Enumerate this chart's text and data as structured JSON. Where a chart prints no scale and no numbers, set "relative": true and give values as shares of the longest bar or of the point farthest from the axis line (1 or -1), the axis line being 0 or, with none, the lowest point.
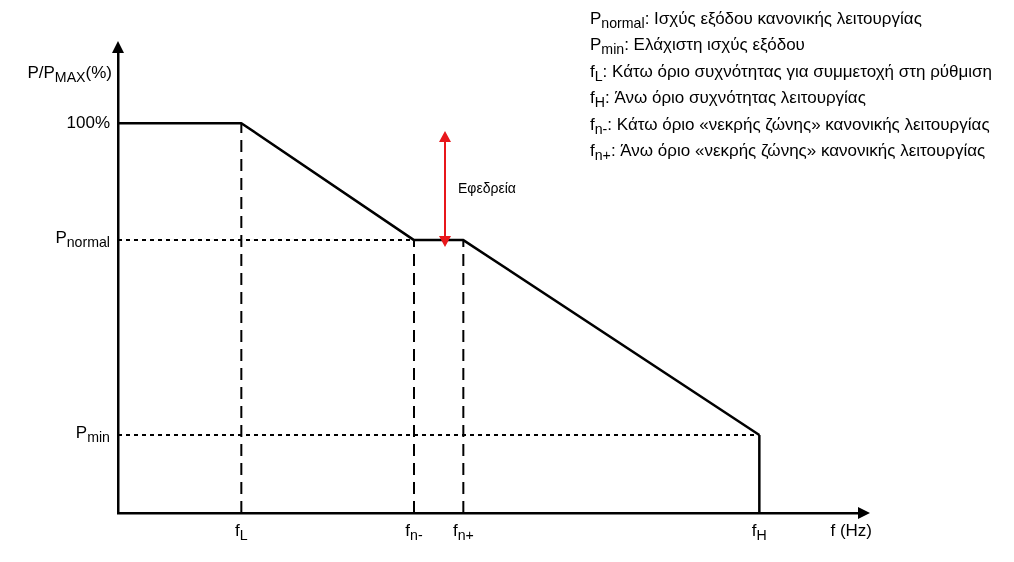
{
  "chart_data": {
    "type": "line",
    "relative": true,
    "xlabel": "f (Hz)",
    "ylabel": "P/P$_{MAX}$(%)",
    "categories": [
      null,
      null,
      null,
      null,
      null,
      "f$_{L}$",
      null,
      null,
      null,
      null,
      null,
      null,
      "f$_{n-}$",
      null,
      "f$_{n+}$",
      null,
      null,
      null,
      null,
      null,
      null,
      null,
      null,
      null,
      null,
      null,
      "f$_{H}$",
      null,
      null,
      null,
      null
    ],
    "series": [
      {
        "color": "#000000",
        "values": [
          1,
          null,
          null,
          null,
          null,
          1,
          null,
          null,
          null,
          null,
          null,
          null,
          0.7,
          null,
          0.7,
          null,
          null,
          null,
          null,
          null,
          null,
          null,
          null,
          null,
          null,
          null,
          0.2,
          null,
          null,
          null,
          null
        ]
      }
    ],
    "ref_lines": [
      {
        "axis": "x",
        "value": "f$_{L}$",
        "line_style": "dashed"
      },
      {
        "axis": "x",
        "value": "f$_{n-}$",
        "line_style": "dashed"
      },
      {
        "axis": "x",
        "value": "f$_{n+}$",
        "line_style": "dashed"
      },
      {
        "axis": "x",
        "value": "f$_{H}$",
        "line_style": "solid"
      },
      {
        "axis": "y",
        "value": 0.7,
        "line_style": "dotted",
        "label": "P$_{normal}$"
      },
      {
        "axis": "y",
        "value": 0.2,
        "line_style": "dotted",
        "label": "P$_{min}$"
      }
    ],
    "annotations": [
      "100%",
      "Εφεδρεία",
      "P$_{normal}$: Ισχύς εξόδου κανονικής λειτουργίας",
      "P$_{min}$: Ελάχιστη ισχύς εξόδου",
      "f$_{L}$: Κάτω όριο συχνότητας για συμμετοχή στη ρύθμιση",
      "f$_{H}$: Άνω όριο συχνότητας λειτουργίας",
      "f$_{n-}$: Κάτω όριο «νεκρής ζώνης» κανονικής λειτουργίας",
      "f$_{n+}$: Άνω όριο «νεκρής ζώνης» κανονικής λειτουργίας"
    ],
    "grid": false,
    "legend": false,
    "marker": "none",
    "line_style": "solid"
  }
}
